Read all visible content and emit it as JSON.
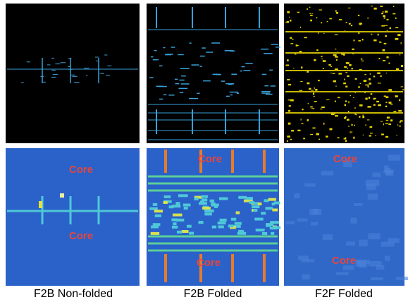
{
  "panels": [
    {
      "caption": "F2B Non-folded",
      "labels": [
        "Core",
        "Core"
      ]
    },
    {
      "caption": "F2B Folded",
      "labels": [
        "Core",
        "Core"
      ]
    },
    {
      "caption": "F2F Folded",
      "labels": [
        "Core",
        "Core"
      ]
    }
  ]
}
